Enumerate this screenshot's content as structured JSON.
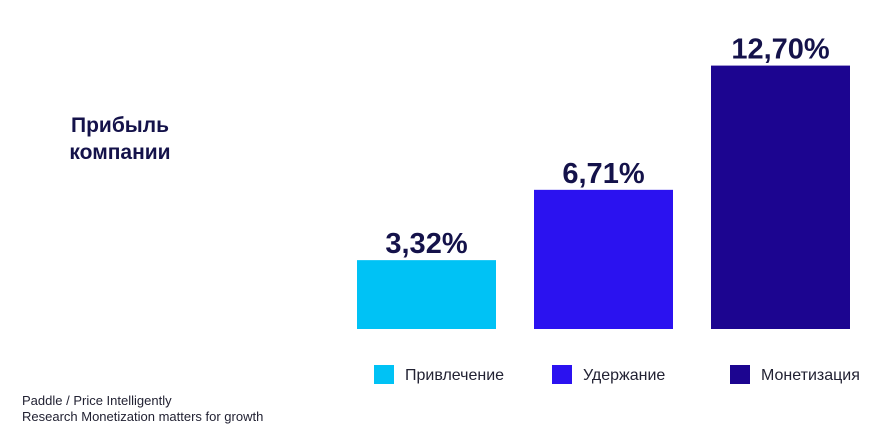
{
  "chart_data": {
    "type": "bar",
    "ylabel": "Прибыль компании",
    "categories": [
      "Привлечение",
      "Удержание",
      "Монетизация"
    ],
    "values": [
      3.32,
      6.71,
      12.7
    ],
    "value_labels": [
      "3,32%",
      "6,71%",
      "12,70%"
    ],
    "colors": [
      "#00c2f5",
      "#2b12f0",
      "#1c0590"
    ],
    "ylim": [
      0,
      13.5
    ],
    "grid": false,
    "legend": "bottom"
  },
  "source": {
    "line1": "Paddle / Price Intelligently",
    "line2": "Research Monetization matters for growth"
  }
}
